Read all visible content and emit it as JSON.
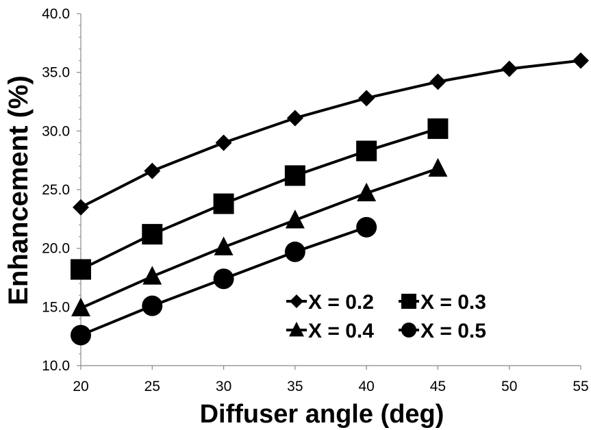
{
  "chart_data": {
    "type": "line",
    "title": "",
    "xlabel": "Diffuser angle (deg)",
    "ylabel": "Enhancement (%)",
    "xlim": [
      20,
      55
    ],
    "ylim": [
      10,
      40
    ],
    "x_ticks": [
      "20",
      "25",
      "30",
      "35",
      "40",
      "45",
      "50",
      "55"
    ],
    "y_ticks": [
      "10.0",
      "15.0",
      "20.0",
      "25.0",
      "30.0",
      "35.0",
      "40.0"
    ],
    "grid": false,
    "legend_position": "bottom-right (inside plot)",
    "series": [
      {
        "name": "X = 0.2",
        "marker": "diamond",
        "x": [
          20,
          25,
          30,
          35,
          40,
          45,
          50,
          55
        ],
        "y": [
          23.5,
          26.6,
          29.0,
          31.1,
          32.8,
          34.2,
          35.3,
          36.0
        ]
      },
      {
        "name": "X = 0.3",
        "marker": "square",
        "x": [
          20,
          25,
          30,
          35,
          40,
          45
        ],
        "y": [
          18.2,
          21.2,
          23.8,
          26.2,
          28.3,
          30.2
        ]
      },
      {
        "name": "X = 0.4",
        "marker": "triangle",
        "x": [
          20,
          25,
          30,
          35,
          40,
          45
        ],
        "y": [
          14.9,
          17.6,
          20.1,
          22.4,
          24.7,
          26.8
        ]
      },
      {
        "name": "X = 0.5",
        "marker": "circle",
        "x": [
          20,
          25,
          30,
          35,
          40
        ],
        "y": [
          12.6,
          15.1,
          17.4,
          19.7,
          21.8
        ]
      }
    ],
    "colors": {
      "line": "#000000",
      "marker": "#000000",
      "background": "#ffffff"
    }
  }
}
